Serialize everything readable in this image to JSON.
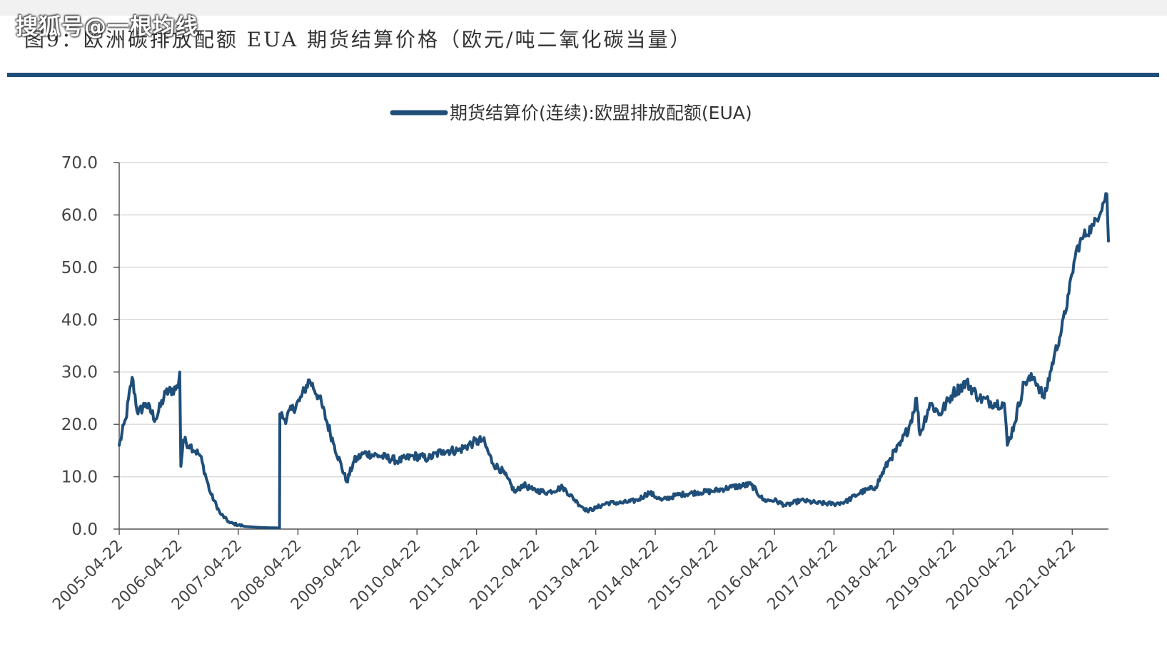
{
  "watermark": "搜狐号@一根均线",
  "figure_title": "图9：欧洲碳排放配额 EUA 期货结算价格（欧元/吨二氧化碳当量）",
  "colors": {
    "series": "#1f4e79",
    "rule": "#1f4e79",
    "grid": "#d9d9d9",
    "axis": "#555555"
  },
  "chart_data": {
    "type": "line",
    "title": "图9：欧洲碳排放配额 EUA 期货结算价格（欧元/吨二氧化碳当量）",
    "xlabel": "",
    "ylabel": "",
    "ylim": [
      0,
      70
    ],
    "xlim": [
      "2005-04-22",
      "2021-11-30"
    ],
    "y_ticks": [
      "0.0",
      "10.0",
      "20.0",
      "30.0",
      "40.0",
      "50.0",
      "60.0",
      "70.0"
    ],
    "x_ticks": [
      "2005-04-22",
      "2006-04-22",
      "2007-04-22",
      "2008-04-22",
      "2009-04-22",
      "2010-04-22",
      "2011-04-22",
      "2012-04-22",
      "2013-04-22",
      "2014-04-22",
      "2015-04-22",
      "2016-04-22",
      "2017-04-22",
      "2018-04-22",
      "2019-04-22",
      "2020-04-22",
      "2021-04-22"
    ],
    "grid": true,
    "legend": "top-center",
    "series": [
      {
        "name": "期货结算价(连续):欧盟排放配额(EUA)",
        "x": [
          "2005-04-22",
          "2005-06-01",
          "2005-07-10",
          "2005-08-15",
          "2005-10-01",
          "2005-12-01",
          "2006-02-01",
          "2006-04-15",
          "2006-04-28",
          "2006-05-05",
          "2006-05-20",
          "2006-07-01",
          "2006-09-01",
          "2006-11-01",
          "2007-01-01",
          "2007-03-01",
          "2007-06-01",
          "2007-09-01",
          "2007-12-31",
          "2008-01-02",
          "2008-02-01",
          "2008-05-01",
          "2008-07-01",
          "2008-09-01",
          "2008-12-01",
          "2009-02-15",
          "2009-04-01",
          "2009-06-01",
          "2009-09-01",
          "2010-01-01",
          "2010-04-01",
          "2010-07-01",
          "2010-10-01",
          "2011-01-01",
          "2011-04-01",
          "2011-06-01",
          "2011-08-01",
          "2011-10-01",
          "2011-12-15",
          "2012-02-01",
          "2012-04-01",
          "2012-07-01",
          "2012-10-01",
          "2013-01-01",
          "2013-03-01",
          "2013-04-22",
          "2013-07-01",
          "2013-10-01",
          "2014-01-01",
          "2014-03-15",
          "2014-06-01",
          "2014-09-01",
          "2015-01-01",
          "2015-04-01",
          "2015-08-01",
          "2015-12-01",
          "2016-02-15",
          "2016-04-22",
          "2016-07-01",
          "2016-10-01",
          "2017-01-01",
          "2017-04-22",
          "2017-07-01",
          "2017-10-01",
          "2018-01-01",
          "2018-04-01",
          "2018-06-01",
          "2018-08-01",
          "2018-09-10",
          "2018-10-01",
          "2018-12-01",
          "2019-02-01",
          "2019-04-22",
          "2019-07-15",
          "2019-10-01",
          "2020-01-01",
          "2020-03-01",
          "2020-03-20",
          "2020-05-01",
          "2020-07-01",
          "2020-09-01",
          "2020-11-01",
          "2021-01-01",
          "2021-02-15",
          "2021-04-01",
          "2021-05-15",
          "2021-07-01",
          "2021-09-01",
          "2021-11-20",
          "2021-11-30"
        ],
        "values": [
          16.0,
          21.0,
          29.0,
          22.0,
          24.0,
          21.0,
          26.0,
          27.0,
          30.0,
          12.0,
          17.0,
          16.0,
          14.0,
          7.0,
          3.0,
          1.2,
          0.5,
          0.3,
          0.2,
          22.0,
          21.0,
          24.5,
          28.5,
          25.0,
          16.0,
          9.0,
          13.0,
          14.5,
          14.0,
          13.0,
          14.0,
          13.5,
          15.0,
          15.0,
          16.5,
          17.0,
          12.5,
          11.0,
          7.0,
          8.5,
          7.5,
          7.0,
          8.0,
          5.0,
          3.5,
          4.0,
          5.0,
          5.0,
          5.5,
          7.0,
          5.5,
          6.5,
          7.0,
          7.2,
          8.0,
          8.5,
          5.5,
          5.5,
          4.5,
          5.5,
          5.0,
          4.8,
          5.2,
          7.0,
          8.0,
          13.5,
          16.0,
          20.0,
          25.0,
          18.0,
          24.0,
          22.0,
          26.0,
          28.0,
          25.0,
          24.0,
          24.0,
          16.0,
          20.0,
          28.0,
          29.0,
          25.0,
          33.0,
          38.0,
          45.0,
          53.0,
          56.0,
          58.0,
          64.0,
          55.0
        ]
      }
    ]
  }
}
